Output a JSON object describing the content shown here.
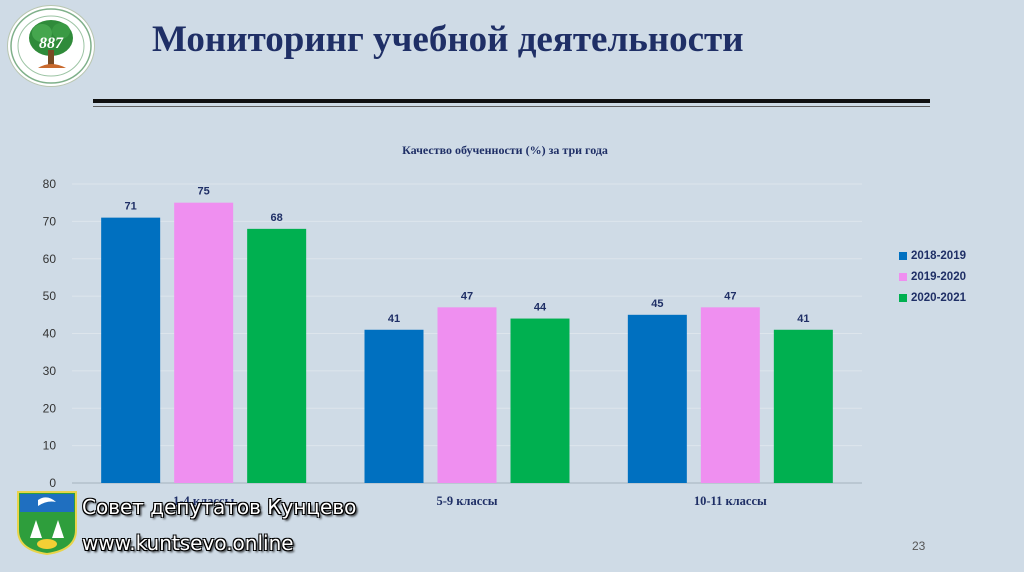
{
  "slide": {
    "title": "Мониторинг учебной деятельности",
    "page_number": "23"
  },
  "logo": {
    "text": "887"
  },
  "watermark": {
    "line1": "Совет депутатов Кунцево",
    "line2": "www.kuntsevo.online"
  },
  "chart_data": {
    "type": "bar",
    "title": "Качество обученности (%) за три года",
    "categories": [
      "1-4 классы",
      "5-9 классы",
      "10-11 классы"
    ],
    "series": [
      {
        "name": "2018-2019",
        "color": "#0070c0",
        "values": [
          71,
          41,
          45
        ]
      },
      {
        "name": "2019-2020",
        "color": "#ef8ff0",
        "values": [
          75,
          47,
          47
        ]
      },
      {
        "name": "2020-2021",
        "color": "#00b050",
        "values": [
          68,
          44,
          41
        ]
      }
    ],
    "ylim": [
      0,
      80
    ],
    "yticks": [
      0,
      10,
      20,
      30,
      40,
      50,
      60,
      70,
      80
    ],
    "grid": true,
    "legend_position": "right"
  }
}
